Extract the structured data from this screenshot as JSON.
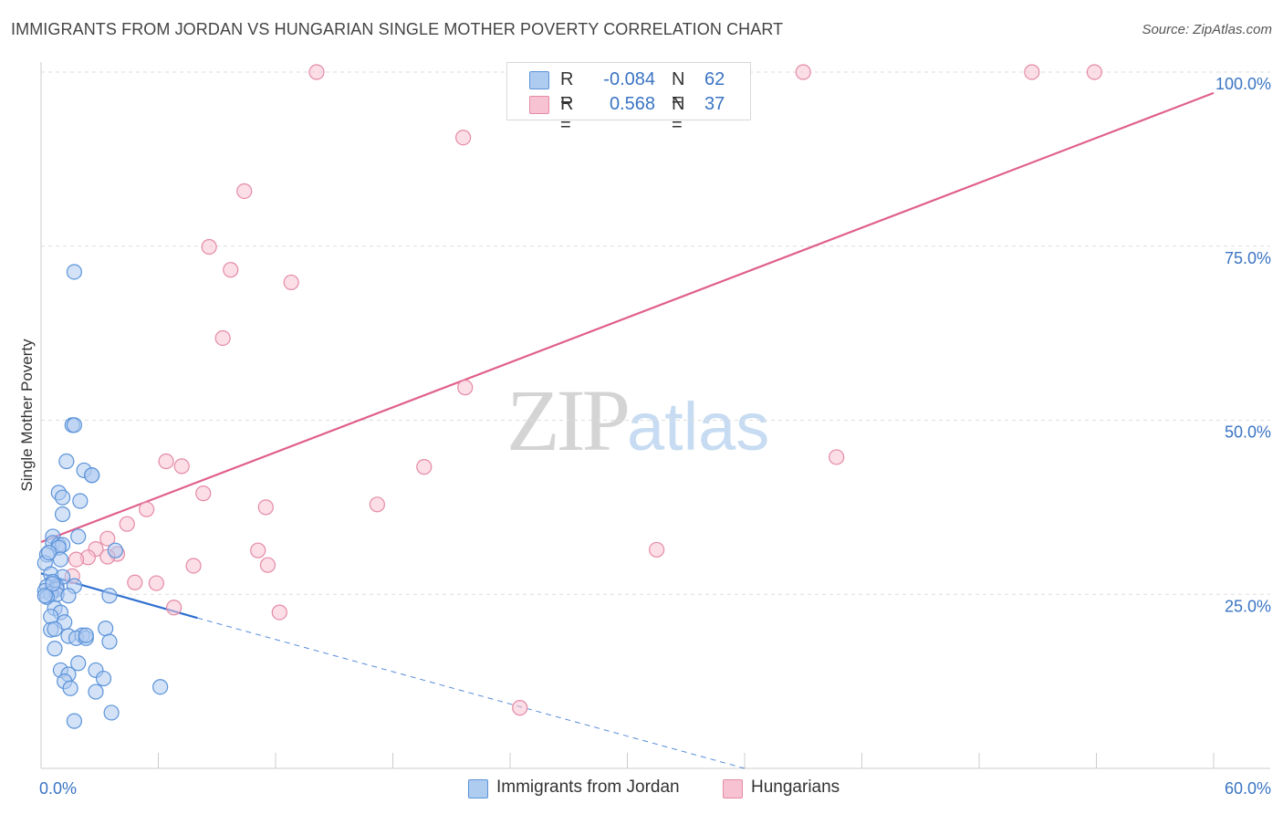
{
  "title": "IMMIGRANTS FROM JORDAN VS HUNGARIAN SINGLE MOTHER POVERTY CORRELATION CHART",
  "source": "Source: ZipAtlas.com",
  "watermark": {
    "zip": "ZIP",
    "atlas": "atlas"
  },
  "legend_top": {
    "rows": [
      {
        "r_label": "R =",
        "r_value": "-0.084",
        "n_label": "N =",
        "n_value": "62"
      },
      {
        "r_label": "R =",
        "r_value": "0.568",
        "n_label": "N =",
        "n_value": "37"
      }
    ]
  },
  "colors": {
    "blue_fill": "#aecbf0",
    "blue_stroke": "#5b93d9",
    "blue_line": "#2f6fd0",
    "pink_fill": "#f7c3d2",
    "pink_stroke": "#e58aa6",
    "pink_line": "#e0608a",
    "tick_label": "#3a74c4",
    "grid": "#dddddd"
  },
  "chart_data": {
    "type": "scatter",
    "title": "IMMIGRANTS FROM JORDAN VS HUNGARIAN SINGLE MOTHER POVERTY CORRELATION CHART",
    "xlabel": "",
    "ylabel": "Single Mother Poverty",
    "xlim": [
      0,
      60
    ],
    "ylim": [
      0,
      100
    ],
    "x_tick_labels": [
      "0.0%",
      "60.0%"
    ],
    "y_ticks": [
      25,
      50,
      75,
      100
    ],
    "y_tick_labels": [
      "25.0%",
      "50.0%",
      "75.0%",
      "100.0%"
    ],
    "grid": true,
    "legend_position": "bottom",
    "series": [
      {
        "name": "Immigrants from Jordan",
        "color": "blue",
        "points": [
          [
            1.7,
            71.3
          ],
          [
            1.6,
            49.3
          ],
          [
            1.7,
            49.3
          ],
          [
            1.3,
            44.1
          ],
          [
            2.2,
            42.8
          ],
          [
            2.6,
            42.1
          ],
          [
            2.6,
            42.1
          ],
          [
            0.9,
            39.6
          ],
          [
            1.1,
            38.9
          ],
          [
            2.0,
            38.4
          ],
          [
            1.1,
            36.5
          ],
          [
            0.6,
            33.3
          ],
          [
            1.9,
            33.3
          ],
          [
            0.6,
            32.4
          ],
          [
            0.9,
            32.1
          ],
          [
            1.1,
            32.1
          ],
          [
            3.8,
            31.3
          ],
          [
            0.9,
            31.7
          ],
          [
            0.3,
            30.7
          ],
          [
            1.0,
            30.0
          ],
          [
            0.2,
            29.5
          ],
          [
            0.5,
            27.9
          ],
          [
            1.1,
            27.5
          ],
          [
            0.6,
            26.8
          ],
          [
            0.3,
            26.1
          ],
          [
            0.8,
            26.1
          ],
          [
            1.7,
            26.2
          ],
          [
            0.8,
            25.7
          ],
          [
            0.2,
            25.5
          ],
          [
            0.5,
            25.1
          ],
          [
            0.8,
            25.0
          ],
          [
            1.4,
            24.8
          ],
          [
            3.5,
            24.8
          ],
          [
            0.3,
            24.6
          ],
          [
            0.7,
            23.0
          ],
          [
            1.0,
            22.4
          ],
          [
            0.5,
            21.8
          ],
          [
            1.2,
            21.0
          ],
          [
            0.5,
            19.9
          ],
          [
            0.7,
            20.0
          ],
          [
            3.3,
            20.1
          ],
          [
            1.4,
            19.0
          ],
          [
            2.1,
            19.1
          ],
          [
            1.8,
            18.7
          ],
          [
            2.3,
            18.7
          ],
          [
            3.5,
            18.2
          ],
          [
            0.7,
            17.2
          ],
          [
            1.9,
            15.1
          ],
          [
            1.0,
            14.1
          ],
          [
            1.4,
            13.5
          ],
          [
            2.8,
            14.1
          ],
          [
            3.2,
            12.9
          ],
          [
            1.2,
            12.5
          ],
          [
            1.5,
            11.5
          ],
          [
            2.8,
            11.0
          ],
          [
            6.1,
            11.7
          ],
          [
            3.6,
            8.0
          ],
          [
            1.7,
            6.8
          ],
          [
            2.3,
            19.1
          ],
          [
            0.2,
            24.8
          ],
          [
            0.4,
            31.0
          ],
          [
            0.6,
            26.5
          ]
        ],
        "trend": {
          "x": [
            0,
            8
          ],
          "y": [
            28.0,
            21.6
          ],
          "dashed_to": [
            36,
            0
          ]
        }
      },
      {
        "name": "Hungarians",
        "color": "pink",
        "points": [
          [
            14.1,
            100
          ],
          [
            39.0,
            100
          ],
          [
            50.7,
            100
          ],
          [
            53.9,
            100
          ],
          [
            21.6,
            90.6
          ],
          [
            10.4,
            82.9
          ],
          [
            8.6,
            74.9
          ],
          [
            9.7,
            71.6
          ],
          [
            12.8,
            69.8
          ],
          [
            9.3,
            61.8
          ],
          [
            21.7,
            54.7
          ],
          [
            40.7,
            44.7
          ],
          [
            6.4,
            44.1
          ],
          [
            7.2,
            43.4
          ],
          [
            19.6,
            43.3
          ],
          [
            8.3,
            39.5
          ],
          [
            17.2,
            37.9
          ],
          [
            11.5,
            37.5
          ],
          [
            5.4,
            37.2
          ],
          [
            4.4,
            35.1
          ],
          [
            3.4,
            33.0
          ],
          [
            2.8,
            31.5
          ],
          [
            11.1,
            31.3
          ],
          [
            3.9,
            30.8
          ],
          [
            3.4,
            30.4
          ],
          [
            2.4,
            30.3
          ],
          [
            1.8,
            30.0
          ],
          [
            7.8,
            29.1
          ],
          [
            11.6,
            29.2
          ],
          [
            31.5,
            31.4
          ],
          [
            1.6,
            27.6
          ],
          [
            0.8,
            26.0
          ],
          [
            4.8,
            26.7
          ],
          [
            5.9,
            26.6
          ],
          [
            6.8,
            23.1
          ],
          [
            12.2,
            22.4
          ],
          [
            24.5,
            8.7
          ]
        ],
        "trend": {
          "x": [
            0,
            60
          ],
          "y": [
            32.5,
            97.0
          ]
        }
      }
    ]
  },
  "legend_bottom": {
    "items": [
      {
        "label": "Immigrants from Jordan"
      },
      {
        "label": "Hungarians"
      }
    ]
  }
}
